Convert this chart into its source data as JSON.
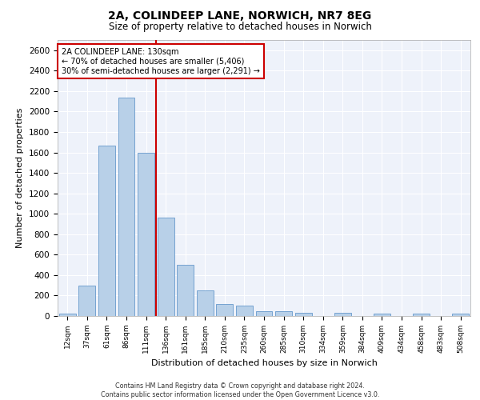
{
  "title_line1": "2A, COLINDEEP LANE, NORWICH, NR7 8EG",
  "title_line2": "Size of property relative to detached houses in Norwich",
  "xlabel": "Distribution of detached houses by size in Norwich",
  "ylabel": "Number of detached properties",
  "bar_labels": [
    "12sqm",
    "37sqm",
    "61sqm",
    "86sqm",
    "111sqm",
    "136sqm",
    "161sqm",
    "185sqm",
    "210sqm",
    "235sqm",
    "260sqm",
    "285sqm",
    "310sqm",
    "334sqm",
    "359sqm",
    "384sqm",
    "409sqm",
    "434sqm",
    "458sqm",
    "483sqm",
    "508sqm"
  ],
  "bar_values": [
    25,
    300,
    1670,
    2140,
    1600,
    960,
    500,
    250,
    120,
    100,
    50,
    50,
    35,
    0,
    30,
    0,
    20,
    0,
    25,
    0,
    25
  ],
  "bar_color": "#B8D0E8",
  "bar_edge_color": "#6699CC",
  "vline_color": "#CC0000",
  "annotation_title": "2A COLINDEEP LANE: 130sqm",
  "annotation_line1": "← 70% of detached houses are smaller (5,406)",
  "annotation_line2": "30% of semi-detached houses are larger (2,291) →",
  "ylim": [
    0,
    2700
  ],
  "yticks": [
    0,
    200,
    400,
    600,
    800,
    1000,
    1200,
    1400,
    1600,
    1800,
    2000,
    2200,
    2400,
    2600
  ],
  "footer_line1": "Contains HM Land Registry data © Crown copyright and database right 2024.",
  "footer_line2": "Contains public sector information licensed under the Open Government Licence v3.0.",
  "plot_bg_color": "#EEF2FA"
}
